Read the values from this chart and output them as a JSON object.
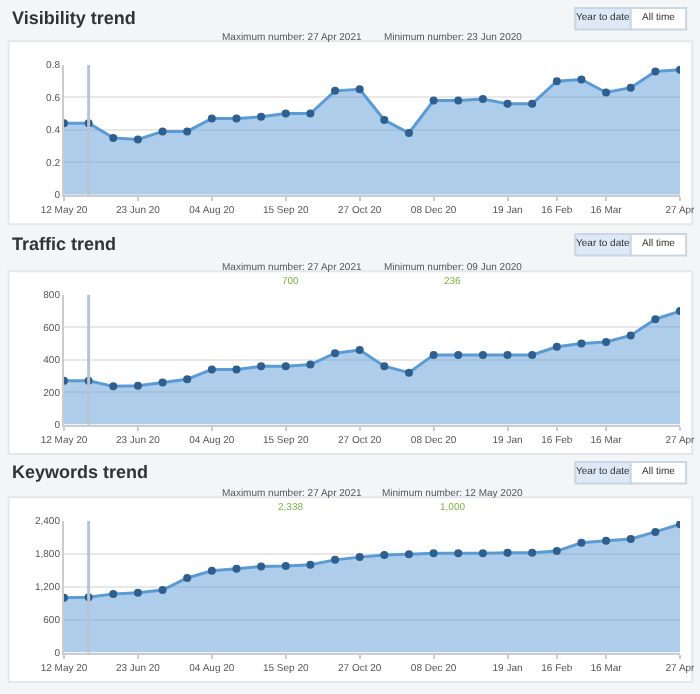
{
  "chart_data": [
    {
      "type": "area",
      "title": "Visibility trend",
      "x": [
        "2020-05-12",
        "2020-05-26",
        "2020-06-09",
        "2020-06-23",
        "2020-07-07",
        "2020-07-21",
        "2020-08-04",
        "2020-08-18",
        "2020-09-01",
        "2020-09-15",
        "2020-09-29",
        "2020-10-13",
        "2020-10-27",
        "2020-11-10",
        "2020-11-24",
        "2020-12-08",
        "2020-12-22",
        "2021-01-05",
        "2021-01-19",
        "2021-02-02",
        "2021-02-16",
        "2021-03-02",
        "2021-03-16",
        "2021-03-30",
        "2021-04-13",
        "2021-04-27"
      ],
      "series": [
        {
          "color": "#5b9bd5",
          "values": [
            0.44,
            0.44,
            0.35,
            0.34,
            0.39,
            0.39,
            0.47,
            0.47,
            0.48,
            0.5,
            0.5,
            0.64,
            0.65,
            0.46,
            0.38,
            0.58,
            0.58,
            0.59,
            0.56,
            0.56,
            0.7,
            0.71,
            0.63,
            0.66,
            0.76,
            0.77
          ]
        }
      ],
      "xlim": [
        "2020-05-12",
        "2021-04-27"
      ],
      "xticks": [
        {
          "value": "2020-05-12",
          "label": "12 May 20"
        },
        {
          "value": "2020-06-23",
          "label": "23 Jun 20"
        },
        {
          "value": "2020-08-04",
          "label": "04 Aug 20"
        },
        {
          "value": "2020-09-15",
          "label": "15 Sep 20"
        },
        {
          "value": "2020-10-27",
          "label": "27 Oct 20"
        },
        {
          "value": "2020-12-08",
          "label": "08 Dec 20"
        },
        {
          "value": "2021-01-19",
          "label": "19 Jan"
        },
        {
          "value": "2021-02-16",
          "label": "16 Feb"
        },
        {
          "value": "2021-03-16",
          "label": "16 Mar"
        },
        {
          "value": "2021-04-27",
          "label": "27 Apr"
        }
      ],
      "ylim": [
        0,
        0.8
      ],
      "yticks": [
        0,
        0.2,
        0.4,
        0.6,
        0.8
      ],
      "grid": "y",
      "marker": "circle",
      "ref_lines": [
        {
          "axis": "x",
          "value": "2020-05-26",
          "color": "#b8c4d0"
        }
      ],
      "annotations": [
        "Maximum number: 27 Apr 2021",
        "Minimum number: 23 Jun 2020",
        "Year to date",
        "All time"
      ]
    },
    {
      "type": "area",
      "title": "Traffic trend",
      "x": [
        "2020-05-12",
        "2020-05-26",
        "2020-06-09",
        "2020-06-23",
        "2020-07-07",
        "2020-07-21",
        "2020-08-04",
        "2020-08-18",
        "2020-09-01",
        "2020-09-15",
        "2020-09-29",
        "2020-10-13",
        "2020-10-27",
        "2020-11-10",
        "2020-11-24",
        "2020-12-08",
        "2020-12-22",
        "2021-01-05",
        "2021-01-19",
        "2021-02-02",
        "2021-02-16",
        "2021-03-02",
        "2021-03-16",
        "2021-03-30",
        "2021-04-13",
        "2021-04-27"
      ],
      "series": [
        {
          "color": "#5b9bd5",
          "values": [
            270,
            270,
            236,
            240,
            260,
            280,
            340,
            340,
            360,
            360,
            370,
            440,
            460,
            360,
            320,
            430,
            430,
            430,
            430,
            430,
            480,
            500,
            510,
            550,
            650,
            700
          ]
        }
      ],
      "xlim": [
        "2020-05-12",
        "2021-04-27"
      ],
      "xticks": [
        {
          "value": "2020-05-12",
          "label": "12 May 20"
        },
        {
          "value": "2020-06-23",
          "label": "23 Jun 20"
        },
        {
          "value": "2020-08-04",
          "label": "04 Aug 20"
        },
        {
          "value": "2020-09-15",
          "label": "15 Sep 20"
        },
        {
          "value": "2020-10-27",
          "label": "27 Oct 20"
        },
        {
          "value": "2020-12-08",
          "label": "08 Dec 20"
        },
        {
          "value": "2021-01-19",
          "label": "19 Jan"
        },
        {
          "value": "2021-02-16",
          "label": "16 Feb"
        },
        {
          "value": "2021-03-16",
          "label": "16 Mar"
        },
        {
          "value": "2021-04-27",
          "label": "27 Apr"
        }
      ],
      "ylim": [
        0,
        800
      ],
      "yticks": [
        0,
        200,
        400,
        600,
        800
      ],
      "grid": "y",
      "marker": "circle",
      "ref_lines": [
        {
          "axis": "x",
          "value": "2020-05-26",
          "color": "#b8c4d0"
        }
      ],
      "annotations": [
        "Maximum number: 27 Apr 2021",
        "Minimum number: 09 Jun 2020",
        "700",
        "236",
        "Year to date",
        "All time"
      ]
    },
    {
      "type": "area",
      "title": "Keywords trend",
      "x": [
        "2020-05-12",
        "2020-05-26",
        "2020-06-09",
        "2020-06-23",
        "2020-07-07",
        "2020-07-21",
        "2020-08-04",
        "2020-08-18",
        "2020-09-01",
        "2020-09-15",
        "2020-09-29",
        "2020-10-13",
        "2020-10-27",
        "2020-11-10",
        "2020-11-24",
        "2020-12-08",
        "2020-12-22",
        "2021-01-05",
        "2021-01-19",
        "2021-02-02",
        "2021-02-16",
        "2021-03-02",
        "2021-03-16",
        "2021-03-30",
        "2021-04-13",
        "2021-04-27"
      ],
      "series": [
        {
          "color": "#5b9bd5",
          "values": [
            1000,
            1010,
            1070,
            1090,
            1140,
            1360,
            1490,
            1530,
            1570,
            1580,
            1600,
            1690,
            1740,
            1780,
            1790,
            1810,
            1810,
            1810,
            1820,
            1820,
            1850,
            2000,
            2040,
            2070,
            2200,
            2338
          ]
        }
      ],
      "xlim": [
        "2020-05-12",
        "2021-04-27"
      ],
      "xticks": [
        {
          "value": "2020-05-12",
          "label": "12 May 20"
        },
        {
          "value": "2020-06-23",
          "label": "23 Jun 20"
        },
        {
          "value": "2020-08-04",
          "label": "04 Aug 20"
        },
        {
          "value": "2020-09-15",
          "label": "15 Sep 20"
        },
        {
          "value": "2020-10-27",
          "label": "27 Oct 20"
        },
        {
          "value": "2020-12-08",
          "label": "08 Dec 20"
        },
        {
          "value": "2021-01-19",
          "label": "19 Jan"
        },
        {
          "value": "2021-02-16",
          "label": "16 Feb"
        },
        {
          "value": "2021-03-16",
          "label": "16 Mar"
        },
        {
          "value": "2021-04-27",
          "label": "27 Apr"
        }
      ],
      "ylim": [
        0,
        2400
      ],
      "yticks": [
        0,
        {
          "value": 600,
          "label": "600"
        },
        {
          "value": 1200,
          "label": "1,200"
        },
        {
          "value": 1800,
          "label": "1,800"
        },
        {
          "value": 2400,
          "label": "2,400"
        }
      ],
      "grid": "y",
      "marker": "circle",
      "ref_lines": [
        {
          "axis": "x",
          "value": "2020-05-26",
          "color": "#b8c4d0"
        }
      ],
      "annotations": [
        "Maximum number: 27 Apr 2021",
        "Minimum number: 12 May 2020",
        "2,338",
        "1,000",
        "Year to date",
        "All time"
      ]
    }
  ]
}
